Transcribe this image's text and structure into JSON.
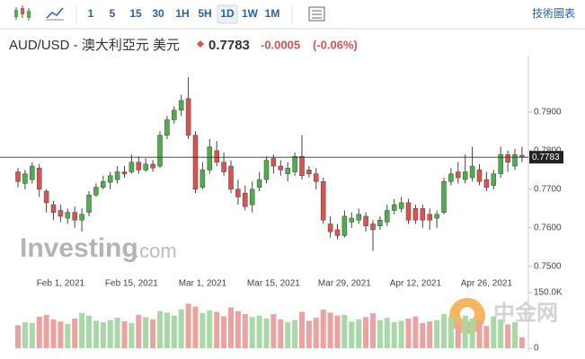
{
  "toolbar": {
    "intervals": [
      "1",
      "5",
      "15",
      "30",
      "1H",
      "5H",
      "1D",
      "1W",
      "1M"
    ],
    "active": "1D",
    "link": "技術圖表"
  },
  "header": {
    "title": "AUD/USD - 澳大利亞元 美元",
    "price": "0.7783",
    "change": "-0.0005",
    "change_percent": "(-0.06%)"
  },
  "watermark": {
    "brand": "Investing",
    "suffix": ".com",
    "partner": "中金网"
  },
  "chart_data": {
    "type": "candlestick",
    "categories": [
      null,
      null,
      null,
      null,
      null,
      null,
      "Feb 1, 2021",
      null,
      null,
      null,
      null,
      null,
      null,
      null,
      null,
      null,
      "Feb 15, 2021",
      null,
      null,
      null,
      null,
      null,
      null,
      null,
      null,
      null,
      "Mar 1, 2021",
      null,
      null,
      null,
      null,
      null,
      null,
      null,
      null,
      null,
      "Mar 15, 2021",
      null,
      null,
      null,
      null,
      null,
      null,
      null,
      null,
      null,
      "Mar 29, 2021",
      null,
      null,
      null,
      null,
      null,
      null,
      null,
      null,
      null,
      "Apr 12, 2021",
      null,
      null,
      null,
      null,
      null,
      null,
      null,
      null,
      null,
      "Apr 26, 2021",
      null,
      null,
      null,
      null,
      null
    ],
    "open": [
      0.7745,
      0.7715,
      0.7725,
      0.7755,
      0.7695,
      0.766,
      0.7645,
      0.7625,
      0.764,
      0.762,
      0.764,
      0.7685,
      0.7705,
      0.7718,
      0.7725,
      0.7745,
      0.7745,
      0.777,
      0.775,
      0.7765,
      0.776,
      0.784,
      0.788,
      0.7905,
      0.7935,
      0.784,
      0.7705,
      0.775,
      0.78,
      0.777,
      0.776,
      0.77,
      0.769,
      0.766,
      0.7705,
      0.7725,
      0.778,
      0.776,
      0.774,
      0.7745,
      0.7785,
      0.775,
      0.774,
      0.772,
      0.761,
      0.7595,
      0.758,
      0.7615,
      0.762,
      0.763,
      0.761,
      0.7605,
      0.7615,
      0.7645,
      0.765,
      0.7665,
      0.765,
      0.765,
      0.7635,
      0.7625,
      0.764,
      0.772,
      0.7745,
      0.7725,
      0.773,
      0.775,
      0.7725,
      0.771,
      0.774,
      0.779,
      0.776,
      0.7788
    ],
    "high": [
      0.7755,
      0.775,
      0.777,
      0.7765,
      0.77,
      0.767,
      0.766,
      0.765,
      0.7655,
      0.765,
      0.7695,
      0.7715,
      0.7735,
      0.7745,
      0.776,
      0.776,
      0.779,
      0.7785,
      0.778,
      0.7775,
      0.785,
      0.789,
      0.7915,
      0.7945,
      0.799,
      0.785,
      0.777,
      0.783,
      0.7825,
      0.7795,
      0.7775,
      0.7725,
      0.771,
      0.772,
      0.7745,
      0.7785,
      0.779,
      0.7775,
      0.777,
      0.7795,
      0.784,
      0.776,
      0.7755,
      0.773,
      0.763,
      0.761,
      0.7645,
      0.764,
      0.765,
      0.764,
      0.762,
      0.763,
      0.766,
      0.7675,
      0.768,
      0.7675,
      0.766,
      0.766,
      0.765,
      0.7645,
      0.773,
      0.7755,
      0.777,
      0.779,
      0.781,
      0.7765,
      0.7745,
      0.775,
      0.781,
      0.78,
      0.7805,
      0.781
    ],
    "low": [
      0.7705,
      0.77,
      0.7715,
      0.768,
      0.764,
      0.762,
      0.7615,
      0.761,
      0.76,
      0.759,
      0.763,
      0.768,
      0.77,
      0.77,
      0.7715,
      0.773,
      0.774,
      0.774,
      0.7745,
      0.7745,
      0.7755,
      0.783,
      0.787,
      0.789,
      0.783,
      0.769,
      0.77,
      0.774,
      0.776,
      0.7735,
      0.769,
      0.766,
      0.7645,
      0.764,
      0.7695,
      0.7715,
      0.774,
      0.7735,
      0.772,
      0.7735,
      0.7725,
      0.773,
      0.77,
      0.761,
      0.7575,
      0.757,
      0.7575,
      0.76,
      0.761,
      0.759,
      0.754,
      0.7595,
      0.7605,
      0.7635,
      0.764,
      0.761,
      0.761,
      0.76,
      0.7595,
      0.76,
      0.7635,
      0.771,
      0.7715,
      0.7715,
      0.772,
      0.771,
      0.7695,
      0.77,
      0.773,
      0.7745,
      0.775,
      0.777
    ],
    "close": [
      0.772,
      0.774,
      0.776,
      0.77,
      0.7665,
      0.764,
      0.763,
      0.764,
      0.762,
      0.7635,
      0.7685,
      0.7705,
      0.772,
      0.7735,
      0.7745,
      0.774,
      0.777,
      0.775,
      0.7765,
      0.7755,
      0.784,
      0.788,
      0.7905,
      0.793,
      0.784,
      0.77,
      0.775,
      0.781,
      0.777,
      0.7745,
      0.77,
      0.768,
      0.7655,
      0.77,
      0.7725,
      0.7775,
      0.776,
      0.775,
      0.7755,
      0.7785,
      0.7735,
      0.774,
      0.772,
      0.762,
      0.759,
      0.758,
      0.763,
      0.7625,
      0.7635,
      0.7605,
      0.7595,
      0.762,
      0.7645,
      0.766,
      0.7665,
      0.762,
      0.762,
      0.762,
      0.762,
      0.7635,
      0.772,
      0.774,
      0.773,
      0.7745,
      0.776,
      0.772,
      0.7705,
      0.774,
      0.779,
      0.777,
      0.779,
      0.7783
    ],
    "volume": [
      62000,
      70000,
      68000,
      85000,
      90000,
      78000,
      72000,
      66000,
      80000,
      95000,
      88000,
      74000,
      70000,
      76000,
      82000,
      73000,
      68000,
      90000,
      84000,
      78000,
      100000,
      96000,
      88000,
      105000,
      120000,
      112000,
      95000,
      102000,
      98000,
      86000,
      110000,
      100000,
      92000,
      84000,
      88000,
      80000,
      92000,
      78000,
      70000,
      76000,
      98000,
      74000,
      82000,
      104000,
      96000,
      88000,
      90000,
      72000,
      78000,
      84000,
      94000,
      76000,
      82000,
      70000,
      74000,
      80000,
      86000,
      68000,
      72000,
      76000,
      92000,
      84000,
      70000,
      88000,
      80000,
      74000,
      60000,
      86000,
      78000,
      64000,
      70000,
      30000
    ],
    "up_color": "#4cae4c",
    "down_color": "#d9534f",
    "up_volume_color": "#a8d8a8",
    "down_volume_color": "#eba3a1",
    "last_price": 0.7783,
    "ylim": [
      0.7481,
      0.8016
    ],
    "yticks": [
      {
        "value": 0.75,
        "label": "0.7500"
      },
      {
        "value": 0.76,
        "label": "0.7600"
      },
      {
        "value": 0.77,
        "label": "0.7700"
      },
      {
        "value": 0.78,
        "label": "0.7800"
      },
      {
        "value": 0.79,
        "label": "0.7900"
      }
    ],
    "vlim": [
      0,
      150000
    ],
    "vticks": [
      {
        "value": 150000,
        "label": "150.0K"
      },
      0
    ],
    "grid": false
  }
}
